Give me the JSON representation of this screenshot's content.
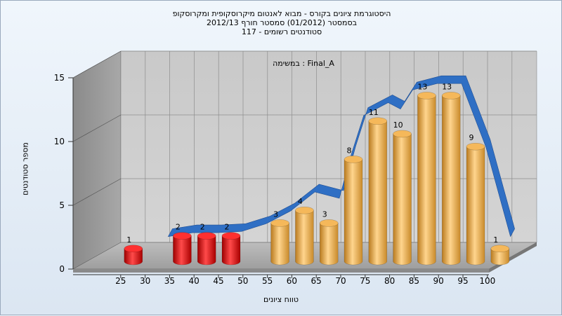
{
  "chart_data": {
    "type": "bar",
    "title_lines": [
      "היסטוגרמת ציונים בקורס - מבוא לאנטום מיקרוסקופית ומקרוסקופ",
      "בסמסטר  (01/2012)  סמסטר חורף  2012/13",
      "סטודנטים רשומים - 117"
    ],
    "annotation": "במשימה : Final_A",
    "xlabel": "טווח ציונים",
    "ylabel": "מספר סטודנטים",
    "x_ticks": [
      25,
      30,
      35,
      40,
      45,
      50,
      55,
      60,
      65,
      70,
      75,
      80,
      85,
      90,
      95,
      100
    ],
    "y_ticks": [
      0,
      5,
      10,
      15
    ],
    "ylim": [
      0,
      15
    ],
    "grid": true,
    "bars": [
      {
        "x": 25,
        "value": 1,
        "color": "#e01010"
      },
      {
        "x": 35,
        "value": 2,
        "color": "#e01010"
      },
      {
        "x": 40,
        "value": 2,
        "color": "#e01010"
      },
      {
        "x": 45,
        "value": 2,
        "color": "#e01010"
      },
      {
        "x": 55,
        "value": 3,
        "color": "#e8a13a"
      },
      {
        "x": 60,
        "value": 4,
        "color": "#e8a13a"
      },
      {
        "x": 65,
        "value": 3,
        "color": "#e8a13a"
      },
      {
        "x": 70,
        "value": 8,
        "color": "#e8a13a"
      },
      {
        "x": 75,
        "value": 11,
        "color": "#e8a13a"
      },
      {
        "x": 80,
        "value": 10,
        "color": "#e8a13a"
      },
      {
        "x": 85,
        "value": 13,
        "color": "#e8a13a"
      },
      {
        "x": 90,
        "value": 13,
        "color": "#e8a13a"
      },
      {
        "x": 95,
        "value": 9,
        "color": "#e8a13a"
      },
      {
        "x": 100,
        "value": 1,
        "color": "#e8a13a"
      }
    ],
    "curve": {
      "type": "distribution-ribbon",
      "color": "#2f6fc4",
      "points": [
        {
          "x": 35,
          "y": 2.0
        },
        {
          "x": 40,
          "y": 2.3
        },
        {
          "x": 45,
          "y": 2.3
        },
        {
          "x": 50,
          "y": 2.4
        },
        {
          "x": 55,
          "y": 3.0
        },
        {
          "x": 60,
          "y": 4.0
        },
        {
          "x": 65,
          "y": 5.5
        },
        {
          "x": 70,
          "y": 5.0
        },
        {
          "x": 72.5,
          "y": 8.5
        },
        {
          "x": 75,
          "y": 11.5
        },
        {
          "x": 80,
          "y": 12.5
        },
        {
          "x": 82.5,
          "y": 12.0
        },
        {
          "x": 85,
          "y": 13.5
        },
        {
          "x": 90,
          "y": 14.0
        },
        {
          "x": 95,
          "y": 14.0
        },
        {
          "x": 100,
          "y": 9.0
        },
        {
          "x": 105,
          "y": 2.0
        }
      ]
    }
  }
}
